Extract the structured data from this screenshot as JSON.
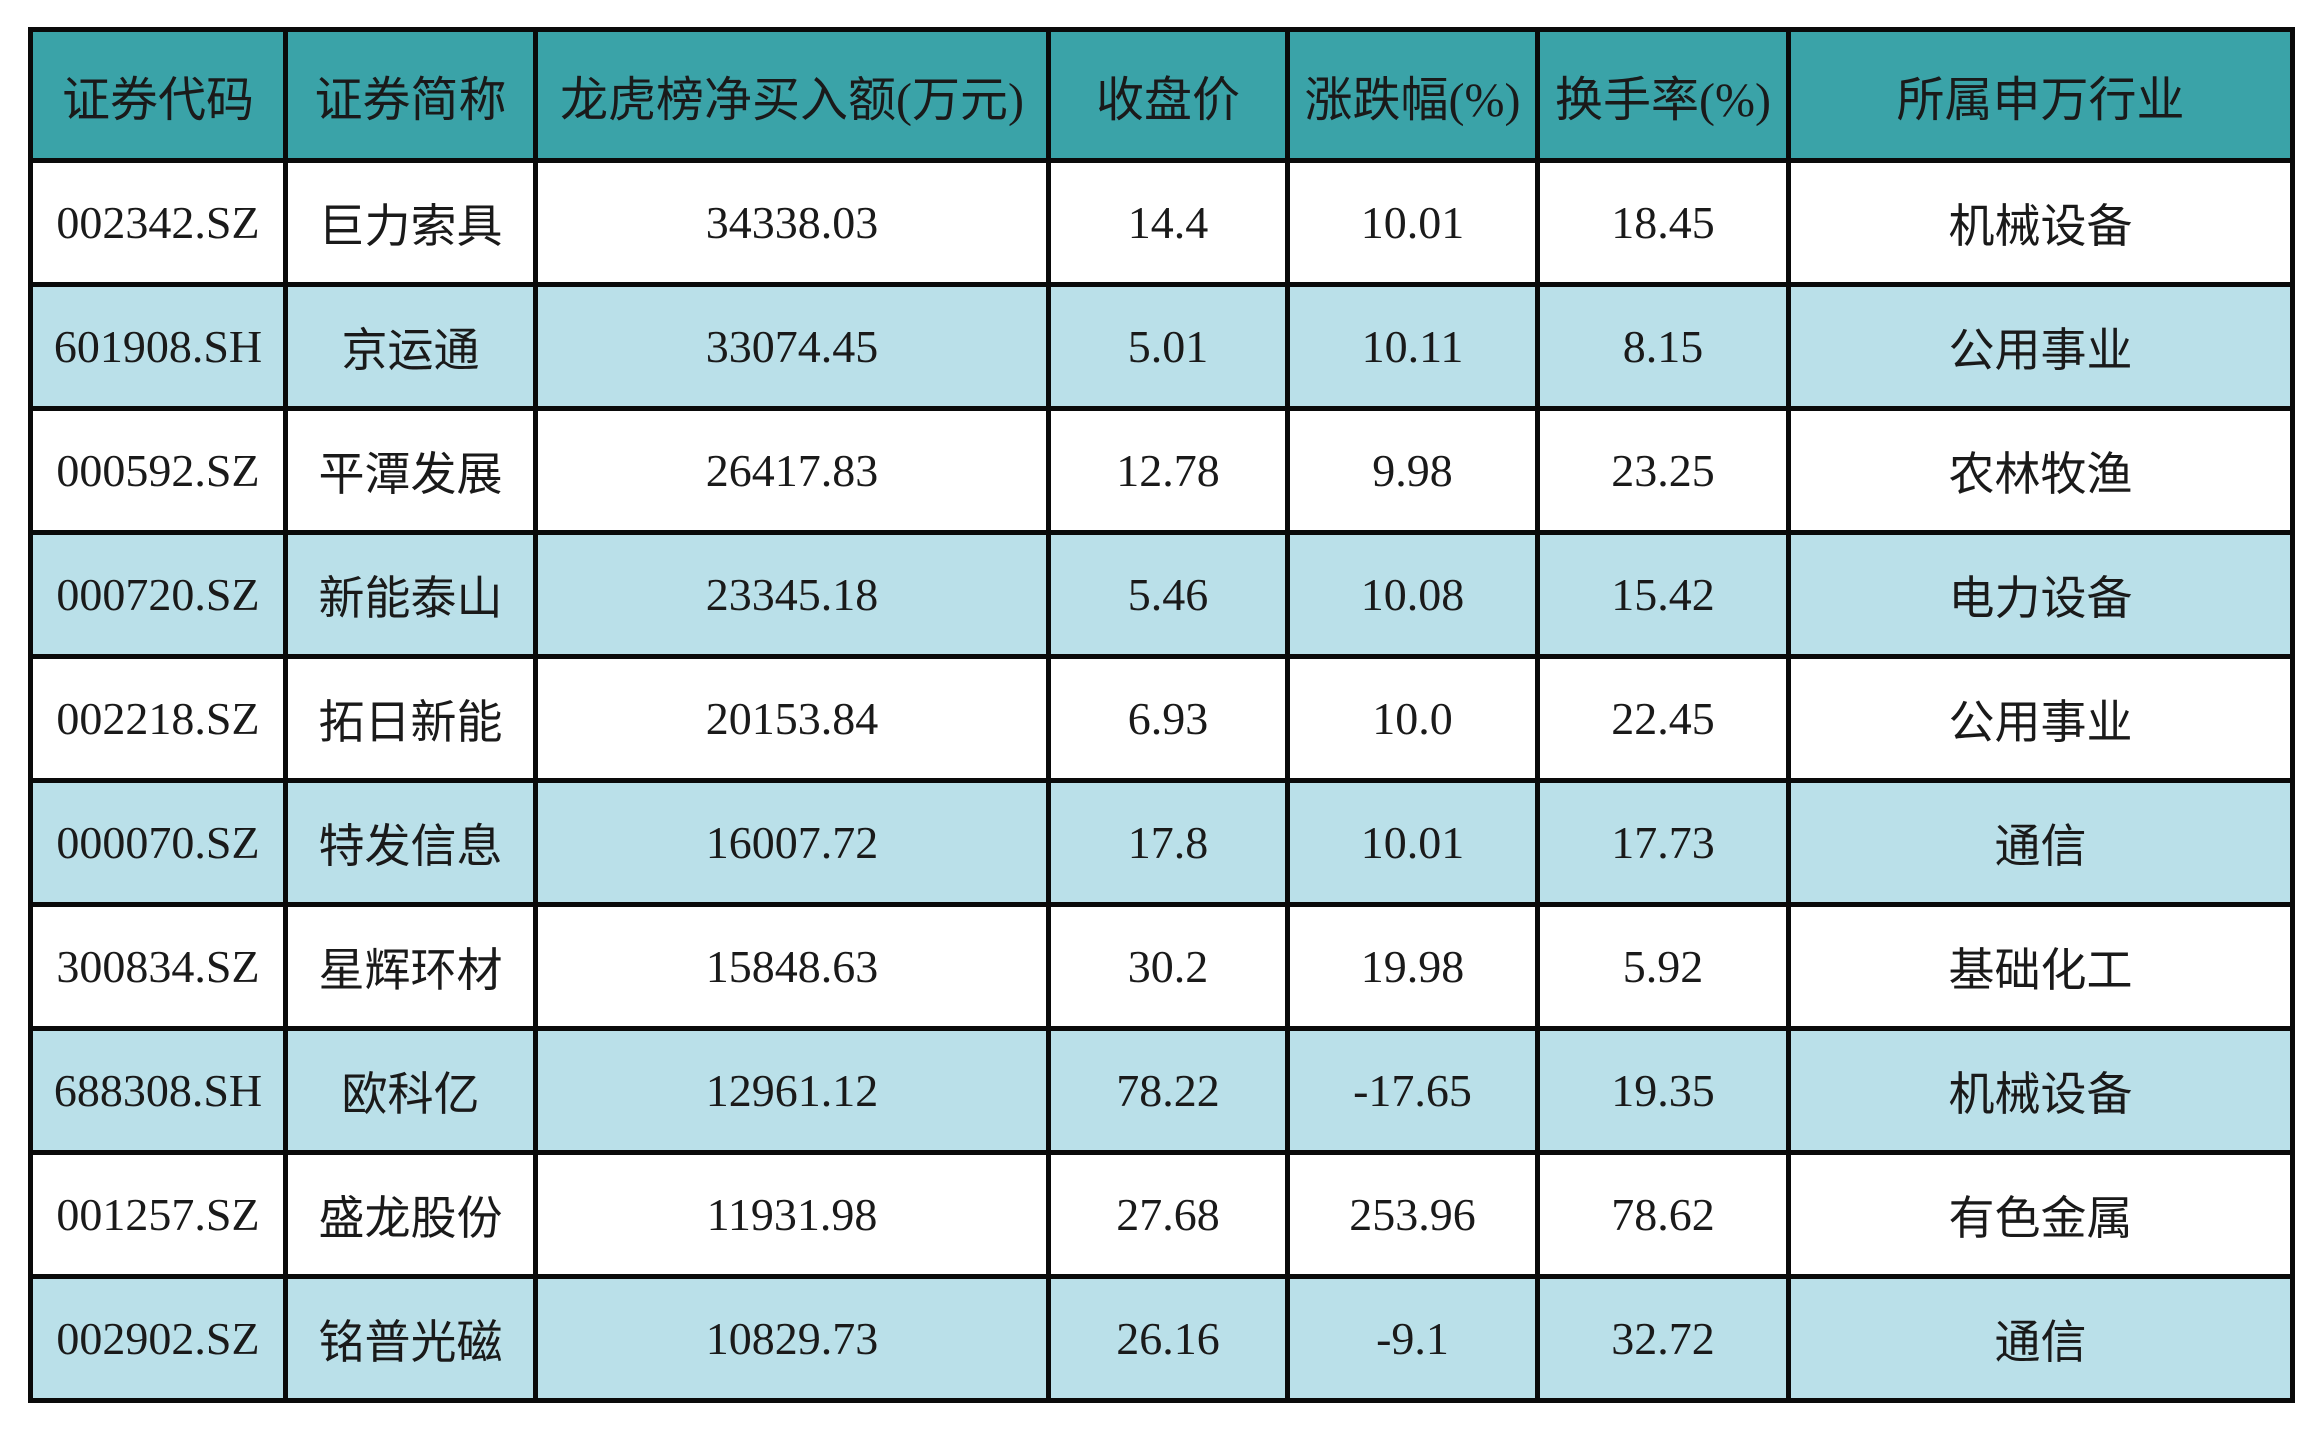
{
  "table": {
    "columns": [
      "证券代码",
      "证券简称",
      "龙虎榜净买入额(万元)",
      "收盘价",
      "涨跌幅(%)",
      "换手率(%)",
      "所属申万行业"
    ],
    "column_keys": [
      "code",
      "name",
      "net-buy",
      "close-price",
      "change-pct",
      "turnover-rate",
      "industry"
    ],
    "rows": [
      [
        "002342.SZ",
        "巨力索具",
        "34338.03",
        "14.4",
        "10.01",
        "18.45",
        "机械设备"
      ],
      [
        "601908.SH",
        "京运通",
        "33074.45",
        "5.01",
        "10.11",
        "8.15",
        "公用事业"
      ],
      [
        "000592.SZ",
        "平潭发展",
        "26417.83",
        "12.78",
        "9.98",
        "23.25",
        "农林牧渔"
      ],
      [
        "000720.SZ",
        "新能泰山",
        "23345.18",
        "5.46",
        "10.08",
        "15.42",
        "电力设备"
      ],
      [
        "002218.SZ",
        "拓日新能",
        "20153.84",
        "6.93",
        "10.0",
        "22.45",
        "公用事业"
      ],
      [
        "000070.SZ",
        "特发信息",
        "16007.72",
        "17.8",
        "10.01",
        "17.73",
        "通信"
      ],
      [
        "300834.SZ",
        "星辉环材",
        "15848.63",
        "30.2",
        "19.98",
        "5.92",
        "基础化工"
      ],
      [
        "688308.SH",
        "欧科亿",
        "12961.12",
        "78.22",
        "-17.65",
        "19.35",
        "机械设备"
      ],
      [
        "001257.SZ",
        "盛龙股份",
        "11931.98",
        "27.68",
        "253.96",
        "78.62",
        "有色金属"
      ],
      [
        "002902.SZ",
        "铭普光磁",
        "10829.73",
        "26.16",
        "-9.1",
        "32.72",
        "通信"
      ]
    ]
  },
  "colors": {
    "header_bg": "#3AA3A8",
    "row_bg": "#FFFFFF",
    "row_alt_bg": "#BAE0E9",
    "border": "#0A0A0A",
    "text": "#1A1A1A",
    "page_bg": "#FFFFFF"
  }
}
